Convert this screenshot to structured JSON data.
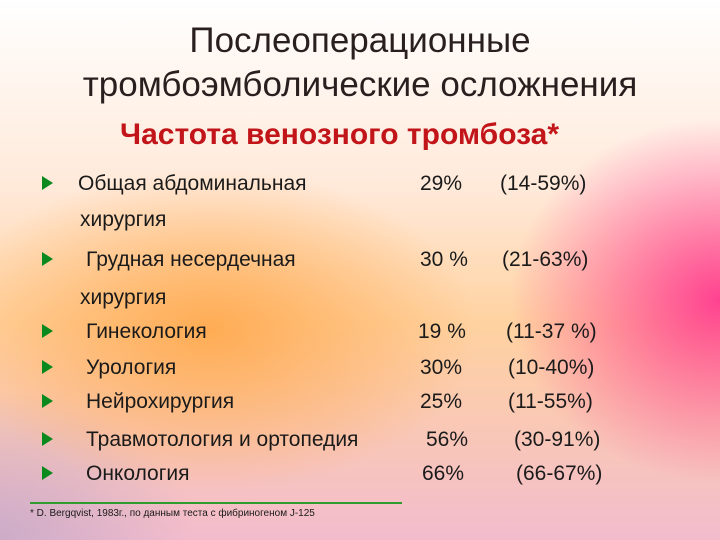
{
  "title_line1": "Послеоперационные",
  "title_line2": "тромбоэмболические осложнения",
  "subtitle": "Частота венозного тромбоза*",
  "items": [
    {
      "name": "Общая абдоминальная",
      "cont": "хирургия",
      "percent": "29%",
      "range": "(14-59%)"
    },
    {
      "name": "Грудная  несердечная",
      "cont": "хирургия",
      "percent": "30 %",
      "range": "(21-63%)"
    },
    {
      "name": "Гинекология",
      "percent": "19 %",
      "range": "(11-37 %)"
    },
    {
      "name": "Урология",
      "percent": "30%",
      "range": "(10-40%)"
    },
    {
      "name": "Нейрохирургия",
      "percent": "25%",
      "range": "(11-55%)"
    },
    {
      "name": "Травмотология и ортопедия",
      "percent": "56%",
      "range": "(30-91%)"
    },
    {
      "name": "Онкология",
      "percent": "66%",
      "range": "(66-67%)"
    }
  ],
  "footnote": "* D. Bergqvist, 1983г., по данным теста с фибриногеном J-125",
  "colors": {
    "subtitle": "#c2151a",
    "bullet": "#0a8a1e",
    "rule": "#2e9c2e"
  }
}
